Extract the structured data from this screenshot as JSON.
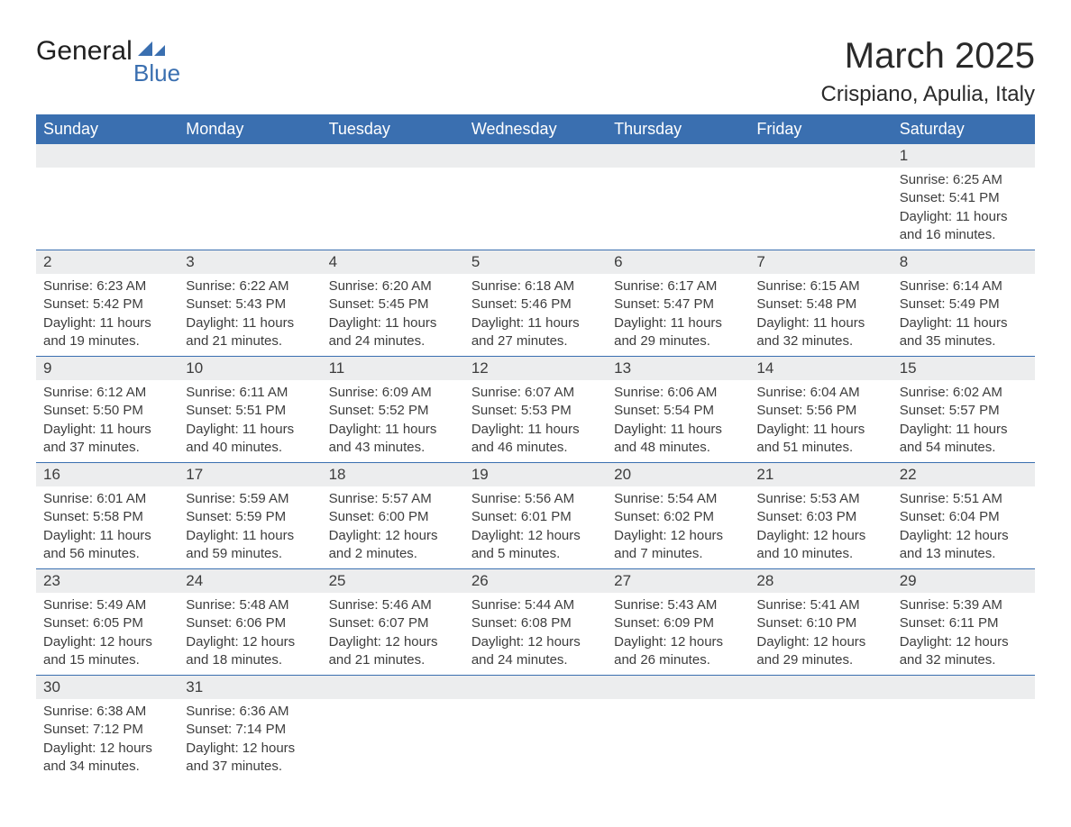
{
  "logo": {
    "text_general": "General",
    "text_blue": "Blue",
    "shape_color": "#3a6fb0"
  },
  "title": "March 2025",
  "location": "Crispiano, Apulia, Italy",
  "header_bg_color": "#3a6fb0",
  "day_number_bg_color": "#ecedee",
  "text_color": "#3d3d3d",
  "border_color": "#3a6fb0",
  "days_of_week": [
    "Sunday",
    "Monday",
    "Tuesday",
    "Wednesday",
    "Thursday",
    "Friday",
    "Saturday"
  ],
  "weeks": [
    [
      null,
      null,
      null,
      null,
      null,
      null,
      {
        "d": "1",
        "sunrise": "Sunrise: 6:25 AM",
        "sunset": "Sunset: 5:41 PM",
        "daylight": "Daylight: 11 hours and 16 minutes."
      }
    ],
    [
      {
        "d": "2",
        "sunrise": "Sunrise: 6:23 AM",
        "sunset": "Sunset: 5:42 PM",
        "daylight": "Daylight: 11 hours and 19 minutes."
      },
      {
        "d": "3",
        "sunrise": "Sunrise: 6:22 AM",
        "sunset": "Sunset: 5:43 PM",
        "daylight": "Daylight: 11 hours and 21 minutes."
      },
      {
        "d": "4",
        "sunrise": "Sunrise: 6:20 AM",
        "sunset": "Sunset: 5:45 PM",
        "daylight": "Daylight: 11 hours and 24 minutes."
      },
      {
        "d": "5",
        "sunrise": "Sunrise: 6:18 AM",
        "sunset": "Sunset: 5:46 PM",
        "daylight": "Daylight: 11 hours and 27 minutes."
      },
      {
        "d": "6",
        "sunrise": "Sunrise: 6:17 AM",
        "sunset": "Sunset: 5:47 PM",
        "daylight": "Daylight: 11 hours and 29 minutes."
      },
      {
        "d": "7",
        "sunrise": "Sunrise: 6:15 AM",
        "sunset": "Sunset: 5:48 PM",
        "daylight": "Daylight: 11 hours and 32 minutes."
      },
      {
        "d": "8",
        "sunrise": "Sunrise: 6:14 AM",
        "sunset": "Sunset: 5:49 PM",
        "daylight": "Daylight: 11 hours and 35 minutes."
      }
    ],
    [
      {
        "d": "9",
        "sunrise": "Sunrise: 6:12 AM",
        "sunset": "Sunset: 5:50 PM",
        "daylight": "Daylight: 11 hours and 37 minutes."
      },
      {
        "d": "10",
        "sunrise": "Sunrise: 6:11 AM",
        "sunset": "Sunset: 5:51 PM",
        "daylight": "Daylight: 11 hours and 40 minutes."
      },
      {
        "d": "11",
        "sunrise": "Sunrise: 6:09 AM",
        "sunset": "Sunset: 5:52 PM",
        "daylight": "Daylight: 11 hours and 43 minutes."
      },
      {
        "d": "12",
        "sunrise": "Sunrise: 6:07 AM",
        "sunset": "Sunset: 5:53 PM",
        "daylight": "Daylight: 11 hours and 46 minutes."
      },
      {
        "d": "13",
        "sunrise": "Sunrise: 6:06 AM",
        "sunset": "Sunset: 5:54 PM",
        "daylight": "Daylight: 11 hours and 48 minutes."
      },
      {
        "d": "14",
        "sunrise": "Sunrise: 6:04 AM",
        "sunset": "Sunset: 5:56 PM",
        "daylight": "Daylight: 11 hours and 51 minutes."
      },
      {
        "d": "15",
        "sunrise": "Sunrise: 6:02 AM",
        "sunset": "Sunset: 5:57 PM",
        "daylight": "Daylight: 11 hours and 54 minutes."
      }
    ],
    [
      {
        "d": "16",
        "sunrise": "Sunrise: 6:01 AM",
        "sunset": "Sunset: 5:58 PM",
        "daylight": "Daylight: 11 hours and 56 minutes."
      },
      {
        "d": "17",
        "sunrise": "Sunrise: 5:59 AM",
        "sunset": "Sunset: 5:59 PM",
        "daylight": "Daylight: 11 hours and 59 minutes."
      },
      {
        "d": "18",
        "sunrise": "Sunrise: 5:57 AM",
        "sunset": "Sunset: 6:00 PM",
        "daylight": "Daylight: 12 hours and 2 minutes."
      },
      {
        "d": "19",
        "sunrise": "Sunrise: 5:56 AM",
        "sunset": "Sunset: 6:01 PM",
        "daylight": "Daylight: 12 hours and 5 minutes."
      },
      {
        "d": "20",
        "sunrise": "Sunrise: 5:54 AM",
        "sunset": "Sunset: 6:02 PM",
        "daylight": "Daylight: 12 hours and 7 minutes."
      },
      {
        "d": "21",
        "sunrise": "Sunrise: 5:53 AM",
        "sunset": "Sunset: 6:03 PM",
        "daylight": "Daylight: 12 hours and 10 minutes."
      },
      {
        "d": "22",
        "sunrise": "Sunrise: 5:51 AM",
        "sunset": "Sunset: 6:04 PM",
        "daylight": "Daylight: 12 hours and 13 minutes."
      }
    ],
    [
      {
        "d": "23",
        "sunrise": "Sunrise: 5:49 AM",
        "sunset": "Sunset: 6:05 PM",
        "daylight": "Daylight: 12 hours and 15 minutes."
      },
      {
        "d": "24",
        "sunrise": "Sunrise: 5:48 AM",
        "sunset": "Sunset: 6:06 PM",
        "daylight": "Daylight: 12 hours and 18 minutes."
      },
      {
        "d": "25",
        "sunrise": "Sunrise: 5:46 AM",
        "sunset": "Sunset: 6:07 PM",
        "daylight": "Daylight: 12 hours and 21 minutes."
      },
      {
        "d": "26",
        "sunrise": "Sunrise: 5:44 AM",
        "sunset": "Sunset: 6:08 PM",
        "daylight": "Daylight: 12 hours and 24 minutes."
      },
      {
        "d": "27",
        "sunrise": "Sunrise: 5:43 AM",
        "sunset": "Sunset: 6:09 PM",
        "daylight": "Daylight: 12 hours and 26 minutes."
      },
      {
        "d": "28",
        "sunrise": "Sunrise: 5:41 AM",
        "sunset": "Sunset: 6:10 PM",
        "daylight": "Daylight: 12 hours and 29 minutes."
      },
      {
        "d": "29",
        "sunrise": "Sunrise: 5:39 AM",
        "sunset": "Sunset: 6:11 PM",
        "daylight": "Daylight: 12 hours and 32 minutes."
      }
    ],
    [
      {
        "d": "30",
        "sunrise": "Sunrise: 6:38 AM",
        "sunset": "Sunset: 7:12 PM",
        "daylight": "Daylight: 12 hours and 34 minutes."
      },
      {
        "d": "31",
        "sunrise": "Sunrise: 6:36 AM",
        "sunset": "Sunset: 7:14 PM",
        "daylight": "Daylight: 12 hours and 37 minutes."
      },
      null,
      null,
      null,
      null,
      null
    ]
  ]
}
